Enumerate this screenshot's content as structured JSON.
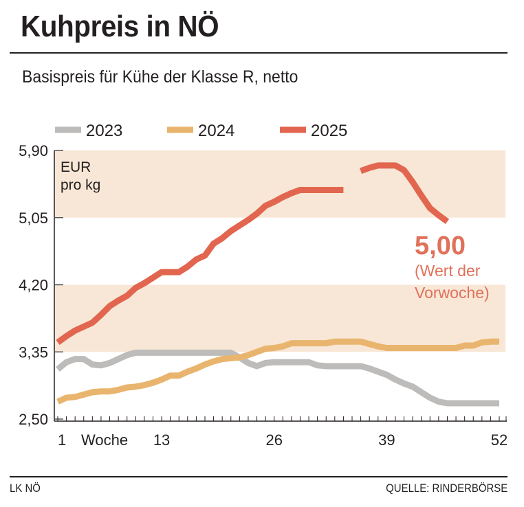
{
  "header": {
    "title": "Kuhpreis in NÖ",
    "subtitle": "Basispreis für Kühe der Klasse R, netto"
  },
  "footer": {
    "left": "LK NÖ",
    "right": "QUELLE: RINDERBÖRSE"
  },
  "colors": {
    "band": "#f8e7d6",
    "2023": "#bdbcbb",
    "2024": "#e9b56e",
    "2025": "#e2664f",
    "annotation": "#e0715a"
  },
  "chart_data": {
    "type": "line",
    "title": "Kuhpreis in NÖ",
    "subtitle": "Basispreis für Kühe der Klasse R, netto",
    "xlabel": "Woche",
    "ylabel": "EUR pro kg",
    "ylabel_lines": [
      "EUR",
      "pro kg"
    ],
    "xlim": [
      1,
      52
    ],
    "ylim": [
      2.5,
      5.9
    ],
    "x_ticks": [
      "1",
      "13",
      "26",
      "39",
      "52"
    ],
    "y_ticks": [
      "2,50",
      "3,35",
      "4,20",
      "5,05",
      "5,90"
    ],
    "shaded_bands": [
      [
        3.35,
        4.2
      ],
      [
        5.05,
        5.9
      ]
    ],
    "legend_position": "top",
    "annotation": {
      "value": "5,00",
      "note_lines": [
        "(Wert der",
        "Vorwoche)"
      ]
    },
    "series": [
      {
        "name": "2023",
        "values": [
          3.13,
          3.22,
          3.26,
          3.26,
          3.19,
          3.18,
          3.21,
          3.26,
          3.31,
          3.34,
          3.34,
          3.34,
          3.34,
          3.34,
          3.34,
          3.34,
          3.34,
          3.34,
          3.34,
          3.34,
          3.34,
          3.28,
          3.21,
          3.17,
          3.21,
          3.22,
          3.22,
          3.22,
          3.22,
          3.22,
          3.18,
          3.17,
          3.17,
          3.17,
          3.17,
          3.17,
          3.14,
          3.1,
          3.06,
          3.0,
          2.95,
          2.91,
          2.84,
          2.77,
          2.72,
          2.7,
          2.7,
          2.7,
          2.7,
          2.7,
          2.7,
          2.7
        ]
      },
      {
        "name": "2024",
        "values": [
          2.72,
          2.77,
          2.78,
          2.81,
          2.84,
          2.85,
          2.85,
          2.87,
          2.9,
          2.91,
          2.93,
          2.96,
          3.0,
          3.05,
          3.05,
          3.1,
          3.14,
          3.19,
          3.23,
          3.26,
          3.27,
          3.28,
          3.31,
          3.35,
          3.39,
          3.4,
          3.42,
          3.46,
          3.46,
          3.46,
          3.46,
          3.46,
          3.48,
          3.48,
          3.48,
          3.48,
          3.45,
          3.42,
          3.4,
          3.4,
          3.4,
          3.4,
          3.4,
          3.4,
          3.4,
          3.4,
          3.4,
          3.43,
          3.43,
          3.47,
          3.48,
          3.48
        ]
      },
      {
        "name": "2025",
        "values": [
          3.47,
          3.55,
          3.62,
          3.67,
          3.72,
          3.82,
          3.93,
          4.0,
          4.06,
          4.16,
          4.22,
          4.29,
          4.36,
          4.36,
          4.36,
          4.43,
          4.52,
          4.57,
          4.72,
          4.79,
          4.88,
          4.95,
          5.02,
          5.1,
          5.2,
          5.25,
          5.31,
          5.36,
          5.4,
          5.4,
          5.4,
          5.4,
          5.4,
          5.4,
          null,
          5.64,
          5.68,
          5.71,
          5.71,
          5.71,
          5.65,
          5.5,
          5.33,
          5.17,
          5.08,
          5.0
        ]
      }
    ]
  }
}
